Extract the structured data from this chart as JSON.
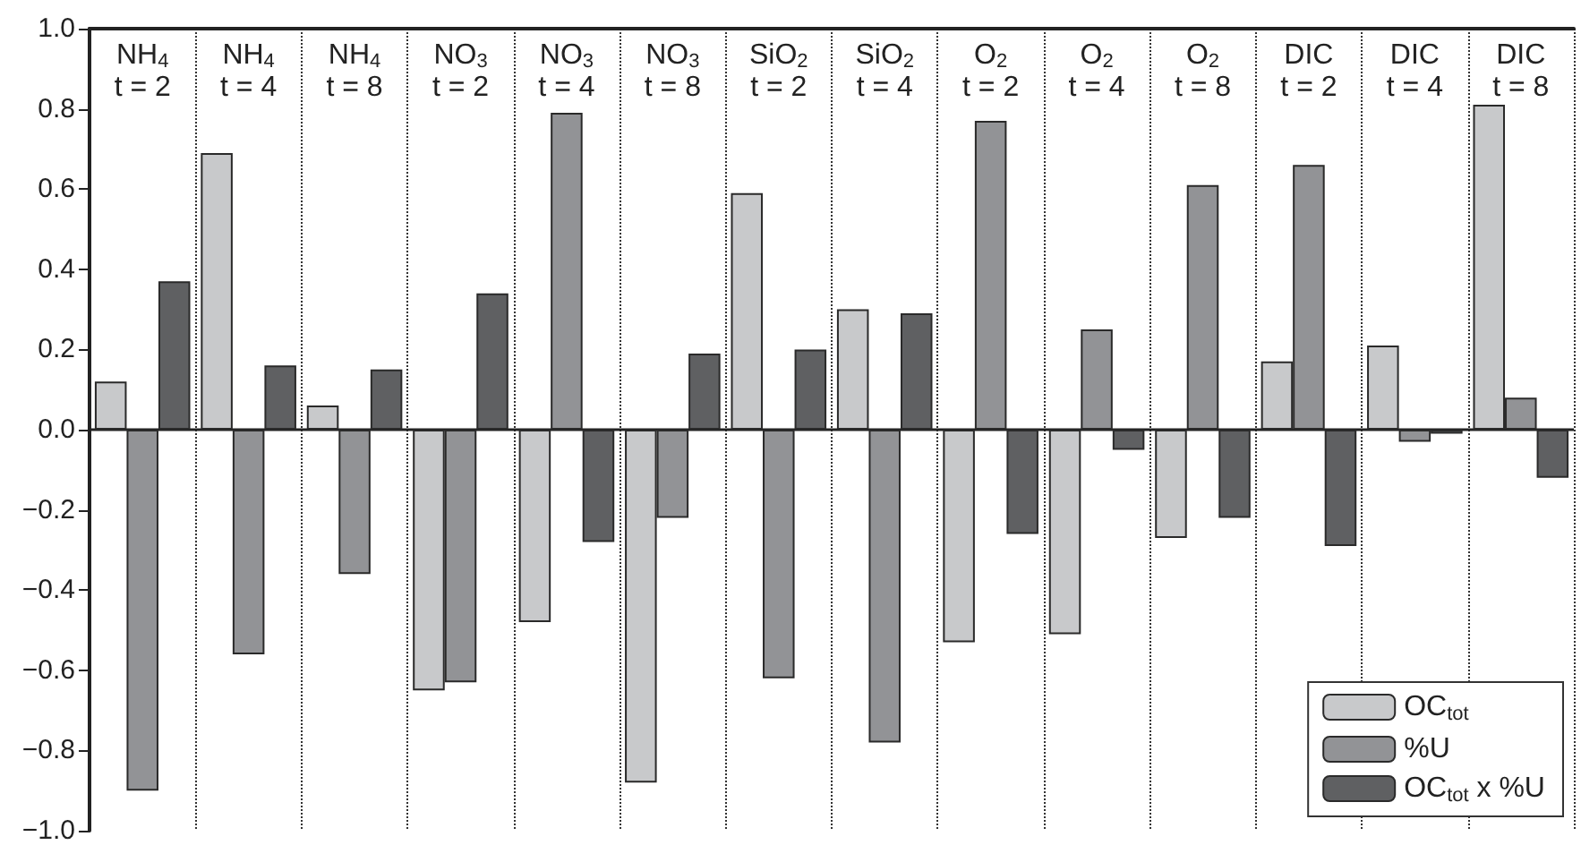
{
  "chart_data": {
    "type": "bar",
    "categories": [
      "NH$_{4}$\nt = 2",
      "NH$_{4}$\nt = 4",
      "NH$_{4}$\nt = 8",
      "NO$_{3}$\nt = 2",
      "NO$_{3}$\nt = 4",
      "NO$_{3}$\nt = 8",
      "SiO$_{2}$\nt = 2",
      "SiO$_{2}$\nt = 4",
      "O$_{2}$\nt = 2",
      "O$_{2}$\nt = 4",
      "O$_{2}$\nt = 8",
      "DIC\nt = 2",
      "DIC\nt = 4",
      "DIC\nt = 8"
    ],
    "series": [
      {
        "name": "OC$_{tot}$",
        "color": "#c8c9cb",
        "values": [
          0.12,
          0.69,
          0.06,
          -0.65,
          -0.48,
          -0.88,
          0.59,
          0.3,
          -0.53,
          -0.51,
          -0.27,
          0.17,
          0.21,
          0.81
        ]
      },
      {
        "name": "%U",
        "color": "#929396",
        "values": [
          -0.9,
          -0.56,
          -0.36,
          -0.63,
          0.79,
          -0.22,
          -0.62,
          -0.78,
          0.77,
          0.25,
          0.61,
          0.66,
          -0.03,
          0.08
        ]
      },
      {
        "name": "OC$_{tot}$ x %U",
        "color": "#5f6062",
        "values": [
          0.37,
          0.16,
          0.15,
          0.34,
          -0.28,
          0.19,
          0.2,
          0.29,
          -0.26,
          -0.05,
          -0.22,
          -0.29,
          -0.01,
          -0.12
        ]
      }
    ],
    "ylim": [
      -1.0,
      1.0
    ],
    "yticks": [
      {
        "value": -1.0,
        "label": "−1.0"
      },
      {
        "value": -0.8,
        "label": "−0.8"
      },
      {
        "value": -0.6,
        "label": "−0.6"
      },
      {
        "value": -0.4,
        "label": "−0.4"
      },
      {
        "value": -0.2,
        "label": "−0.2"
      },
      {
        "value": 0,
        "label": "0.0"
      },
      {
        "value": 0.2,
        "label": "0.2"
      },
      {
        "value": 0.4,
        "label": "0.4"
      },
      {
        "value": 0.6,
        "label": "0.6"
      },
      {
        "value": 0.8,
        "label": "0.8"
      },
      {
        "value": 1.0,
        "label": "1.0"
      }
    ],
    "grid": "x",
    "legend": "bottom right"
  }
}
